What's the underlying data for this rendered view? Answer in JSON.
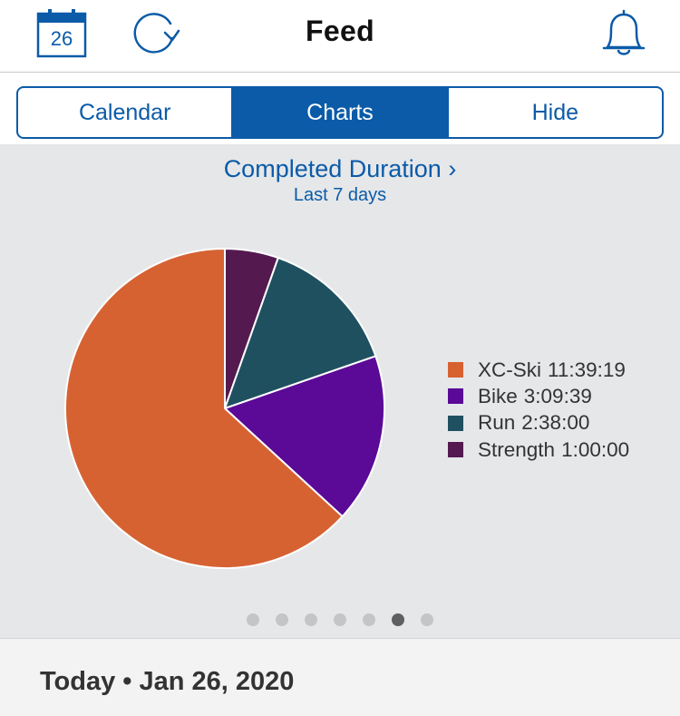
{
  "header": {
    "title": "Feed",
    "calendar_day": "26",
    "calendar_icon": "calendar-icon",
    "refresh_icon": "refresh-icon",
    "notifications_icon": "bell-icon"
  },
  "tabs": [
    {
      "label": "Calendar",
      "active": false
    },
    {
      "label": "Charts",
      "active": true
    },
    {
      "label": "Hide",
      "active": false
    }
  ],
  "chart": {
    "title": "Completed Duration ›",
    "subtitle": "Last 7 days",
    "legend": [
      {
        "name": "XC-Ski",
        "value": "11:39:19",
        "color": "#d66232"
      },
      {
        "name": "Bike",
        "value": "3:09:39",
        "color": "#5a0a96"
      },
      {
        "name": "Run",
        "value": "2:38:00",
        "color": "#1f5060"
      },
      {
        "name": "Strength",
        "value": "1:00:00",
        "color": "#541a50"
      }
    ]
  },
  "chart_data": {
    "type": "pie",
    "title": "Completed Duration",
    "subtitle": "Last 7 days",
    "categories": [
      "XC-Ski",
      "Bike",
      "Run",
      "Strength"
    ],
    "values_seconds": [
      41959,
      11379,
      9480,
      3600
    ],
    "labels": [
      "11:39:19",
      "3:09:39",
      "2:38:00",
      "1:00:00"
    ],
    "colors": [
      "#d66232",
      "#5a0a96",
      "#1f5060",
      "#541a50"
    ],
    "legend_position": "right"
  },
  "pager": {
    "count": 7,
    "active_index": 5
  },
  "date_section": {
    "label": "Today • Jan 26, 2020"
  }
}
